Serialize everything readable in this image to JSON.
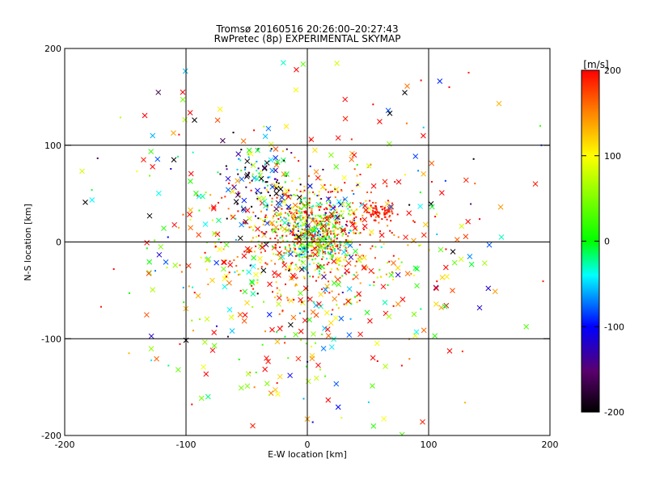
{
  "chart_data": {
    "type": "scatter",
    "title": "Tromsø 20160516 20:26:00–20:27:43",
    "subtitle": "RwPretec (8p) EXPERIMENTAL SKYMAP",
    "xlabel": "E-W location [km]",
    "ylabel": "N-S location [km]",
    "xlim": [
      -200,
      200
    ],
    "ylim": [
      -200,
      200
    ],
    "xticks": [
      -200,
      -100,
      0,
      100,
      200
    ],
    "yticks": [
      -200,
      -100,
      0,
      100,
      200
    ],
    "grid": true,
    "colorbar": {
      "label": "[m/s]",
      "range": [
        -200,
        200
      ],
      "ticks": [
        200,
        100,
        0,
        -100,
        -200
      ],
      "colormap": "rainbow black-purple-blue-cyan-green-yellow-red"
    },
    "marker_types": [
      "dot",
      "x"
    ],
    "clusters": [
      {
        "cx": 5,
        "cy": 15,
        "sx": 22,
        "sy": 22,
        "n": 420,
        "vmean": 120,
        "vsd": 110,
        "xfrac": 0.08
      },
      {
        "cx": 5,
        "cy": 5,
        "sx": 15,
        "sy": 15,
        "n": 260,
        "vmean": 10,
        "vsd": 60,
        "xfrac": 0.05
      },
      {
        "cx": 0,
        "cy": 0,
        "sx": 45,
        "sy": 35,
        "n": 330,
        "vmean": 160,
        "vsd": 60,
        "xfrac": 0.1
      },
      {
        "cx": 60,
        "cy": 30,
        "sx": 7,
        "sy": 5,
        "n": 80,
        "vmean": 190,
        "vsd": 15,
        "xfrac": 0.05
      },
      {
        "cx": -40,
        "cy": 60,
        "sx": 15,
        "sy": 25,
        "n": 110,
        "vmean": -120,
        "vsd": 90,
        "xfrac": 0.4
      },
      {
        "cx": 0,
        "cy": -40,
        "sx": 60,
        "sy": 70,
        "n": 260,
        "vmean": 100,
        "vsd": 130,
        "xfrac": 0.55
      },
      {
        "cx": 0,
        "cy": 0,
        "sx": 90,
        "sy": 90,
        "n": 260,
        "vmean": 80,
        "vsd": 140,
        "xfrac": 0.7
      }
    ],
    "notable_points": [
      {
        "x": -183,
        "y": 41,
        "v": -200,
        "m": "x"
      },
      {
        "x": -93,
        "y": 126,
        "v": -200,
        "m": "x"
      },
      {
        "x": 68,
        "y": 133,
        "v": -200,
        "m": "x"
      },
      {
        "x": 158,
        "y": 143,
        "v": 130,
        "m": "x"
      },
      {
        "x": 133,
        "y": 175,
        "v": 190,
        "m": "dot"
      },
      {
        "x": 117,
        "y": 160,
        "v": 200,
        "m": "dot"
      },
      {
        "x": 192,
        "y": 120,
        "v": 20,
        "m": "dot"
      },
      {
        "x": 188,
        "y": 60,
        "v": 190,
        "m": "x"
      },
      {
        "x": 120,
        "y": -10,
        "v": -200,
        "m": "x"
      },
      {
        "x": 150,
        "y": -3,
        "v": -80,
        "m": "x"
      },
      {
        "x": 160,
        "y": 5,
        "v": -30,
        "m": "x"
      },
      {
        "x": 142,
        "y": -68,
        "v": -120,
        "m": "x"
      },
      {
        "x": 95,
        "y": -186,
        "v": 190,
        "m": "x"
      },
      {
        "x": 90,
        "y": -93,
        "v": -40,
        "m": "x"
      },
      {
        "x": 0,
        "y": -183,
        "v": 140,
        "m": "x"
      },
      {
        "x": -3,
        "y": -162,
        "v": -60,
        "m": "dot"
      },
      {
        "x": -45,
        "y": -190,
        "v": 190,
        "m": "x"
      },
      {
        "x": -170,
        "y": -67,
        "v": 190,
        "m": "dot"
      },
      {
        "x": -147,
        "y": -115,
        "v": 130,
        "m": "dot"
      },
      {
        "x": -135,
        "y": 85,
        "v": 190,
        "m": "x"
      },
      {
        "x": -110,
        "y": 85,
        "v": -200,
        "m": "x"
      },
      {
        "x": -130,
        "y": 27,
        "v": -200,
        "m": "x"
      },
      {
        "x": 193,
        "y": 100,
        "v": -90,
        "m": "dot"
      },
      {
        "x": 130,
        "y": -166,
        "v": 130,
        "m": "dot"
      }
    ]
  }
}
